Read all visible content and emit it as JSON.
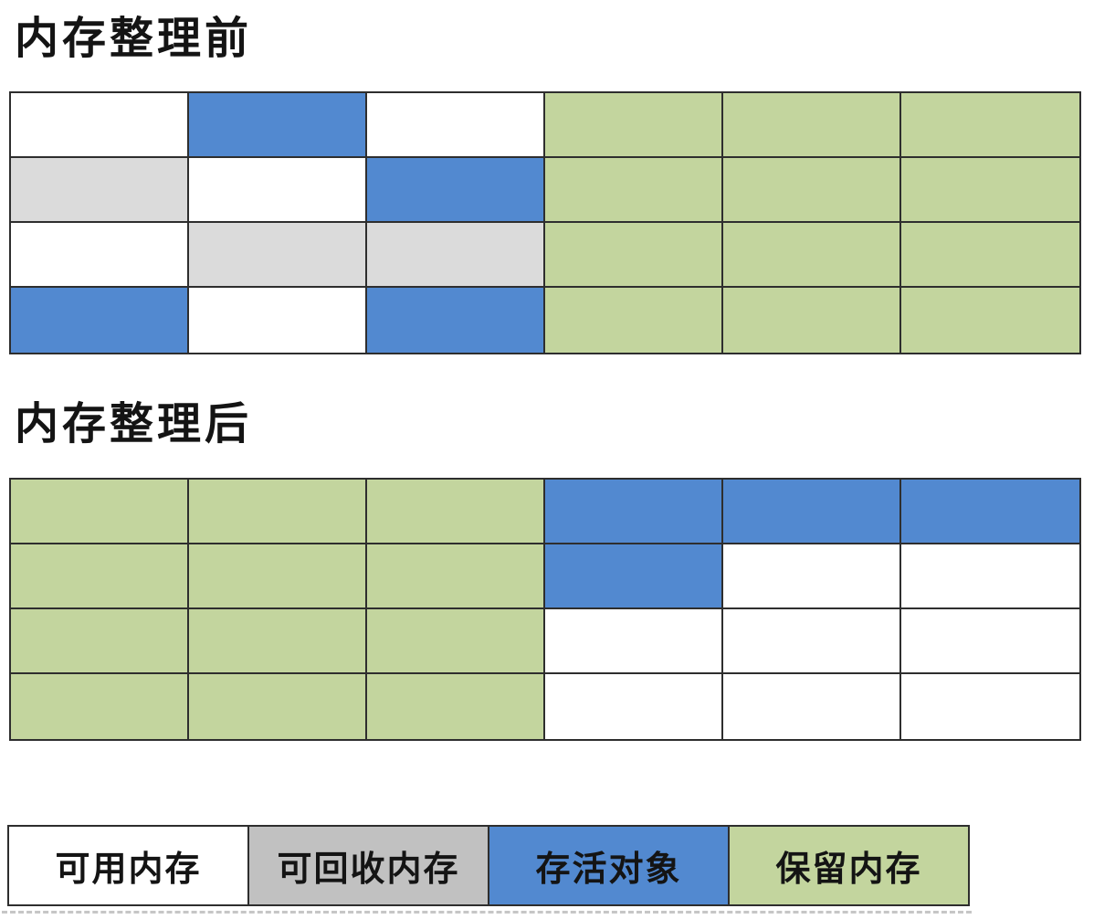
{
  "titles": {
    "before": "内存整理前",
    "after": "内存整理后"
  },
  "colors": {
    "available": "#ffffff",
    "reclaimable": "#dbdbdb",
    "reclaimable_legend": "#c1c1c1",
    "live": "#5289d0",
    "reserved": "#c3d59e",
    "border": "#2e2e2e"
  },
  "grid_before": {
    "rows": [
      [
        "available",
        "live",
        "available",
        "reserved",
        "reserved",
        "reserved"
      ],
      [
        "reclaimable",
        "available",
        "live",
        "reserved",
        "reserved",
        "reserved"
      ],
      [
        "available",
        "reclaimable",
        "reclaimable",
        "reserved",
        "reserved",
        "reserved"
      ],
      [
        "live",
        "available",
        "live",
        "reserved",
        "reserved",
        "reserved"
      ]
    ]
  },
  "grid_after": {
    "rows": [
      [
        "reserved",
        "reserved",
        "reserved",
        "live",
        "live",
        "live"
      ],
      [
        "reserved",
        "reserved",
        "reserved",
        "live",
        "available",
        "available"
      ],
      [
        "reserved",
        "reserved",
        "reserved",
        "available",
        "available",
        "available"
      ],
      [
        "reserved",
        "reserved",
        "reserved",
        "available",
        "available",
        "available"
      ]
    ]
  },
  "legend": {
    "items": [
      {
        "type": "available",
        "label": "可用内存"
      },
      {
        "type": "reclaimable",
        "label": "可回收内存"
      },
      {
        "type": "live",
        "label": "存活对象"
      },
      {
        "type": "reserved",
        "label": "保留内存"
      }
    ]
  }
}
